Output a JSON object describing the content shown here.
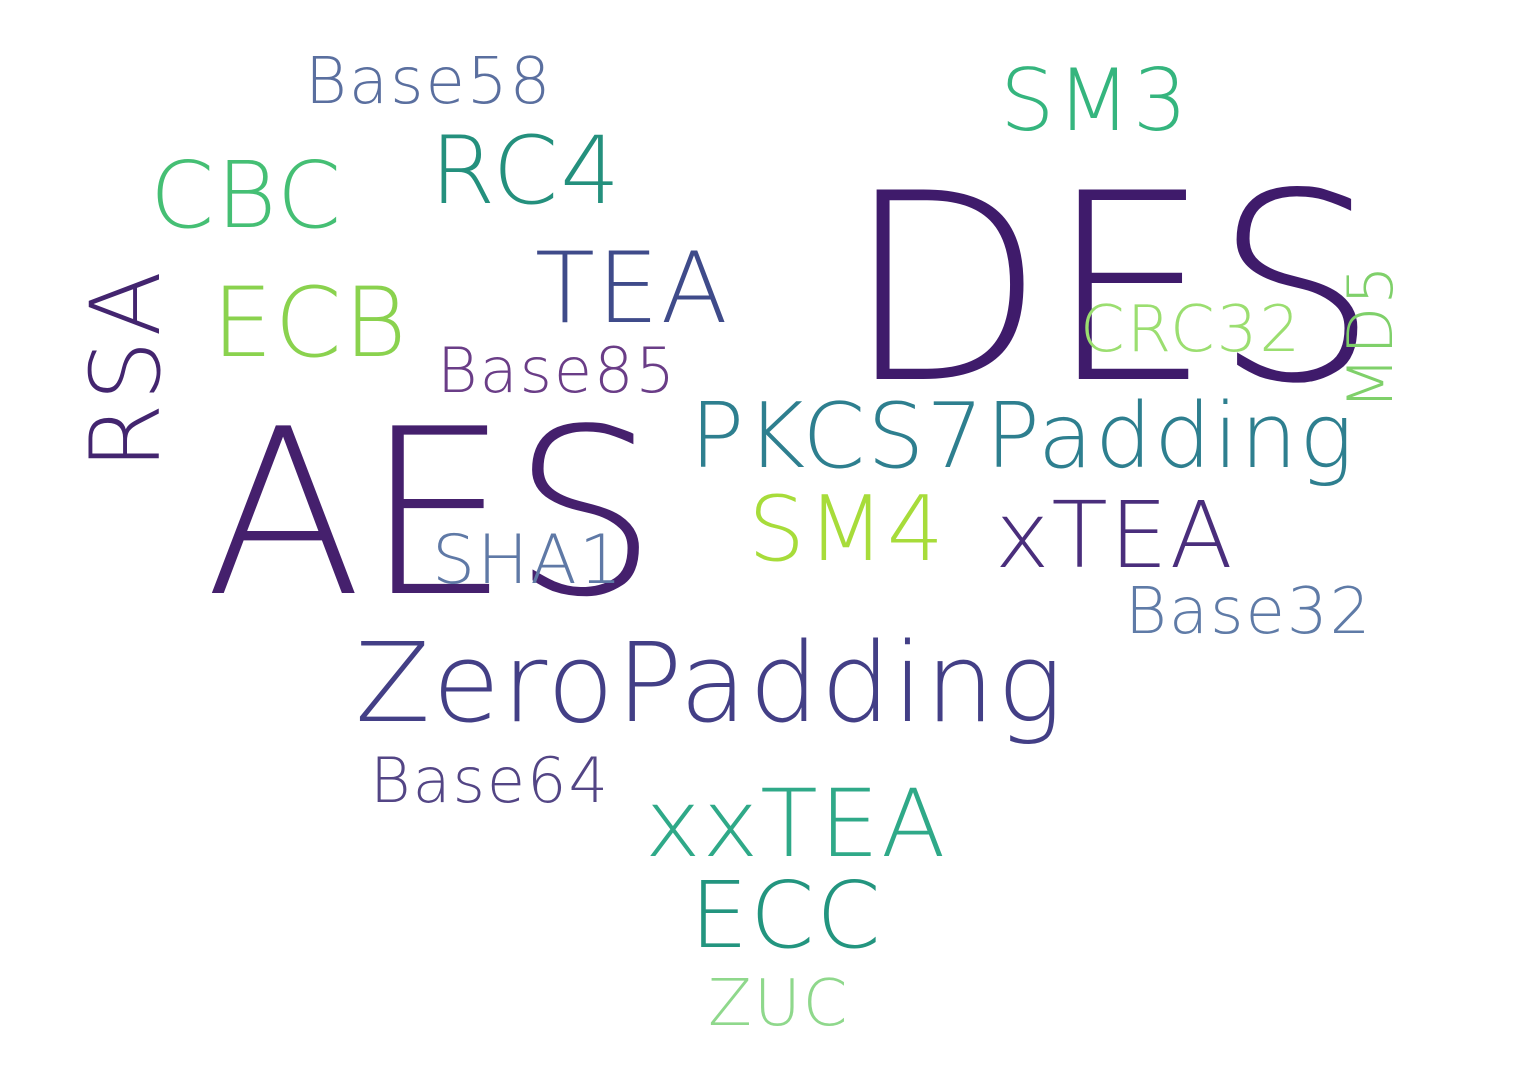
{
  "words": {
    "base58": {
      "text": "Base58",
      "color": "#5a6f9f"
    },
    "sm3": {
      "text": "SM3",
      "color": "#35b57e"
    },
    "cbc": {
      "text": "CBC",
      "color": "#45bf74"
    },
    "rc4": {
      "text": "RC4",
      "color": "#24907d"
    },
    "des": {
      "text": "DES",
      "color": "#3f1b6b"
    },
    "tea": {
      "text": "TEA",
      "color": "#3f4b8a"
    },
    "ecb": {
      "text": "ECB",
      "color": "#8ad24e"
    },
    "rsa": {
      "text": "RSA",
      "color": "#43256f"
    },
    "crc32": {
      "text": "CRC32",
      "color": "#9bde70"
    },
    "md5": {
      "text": "MD5",
      "color": "#7fd06a"
    },
    "base85": {
      "text": "Base85",
      "color": "#6a3d87"
    },
    "pkcs7padding": {
      "text": "PKCS7Padding",
      "color": "#2e7f8f"
    },
    "aes": {
      "text": "AES",
      "color": "#45206d"
    },
    "sm4": {
      "text": "SM4",
      "color": "#a7dc3a"
    },
    "xtea": {
      "text": "xTEA",
      "color": "#4a2e7c"
    },
    "sha1": {
      "text": "SHA1",
      "color": "#5f79a6"
    },
    "base32": {
      "text": "Base32",
      "color": "#5f7ba7"
    },
    "zeropadding": {
      "text": "ZeroPadding",
      "color": "#433f86"
    },
    "base64": {
      "text": "Base64",
      "color": "#534585"
    },
    "xxtea": {
      "text": "xxTEA",
      "color": "#2fa988"
    },
    "ecc": {
      "text": "ECC",
      "color": "#23957f"
    },
    "zuc": {
      "text": "ZUC",
      "color": "#8fd88c"
    }
  }
}
